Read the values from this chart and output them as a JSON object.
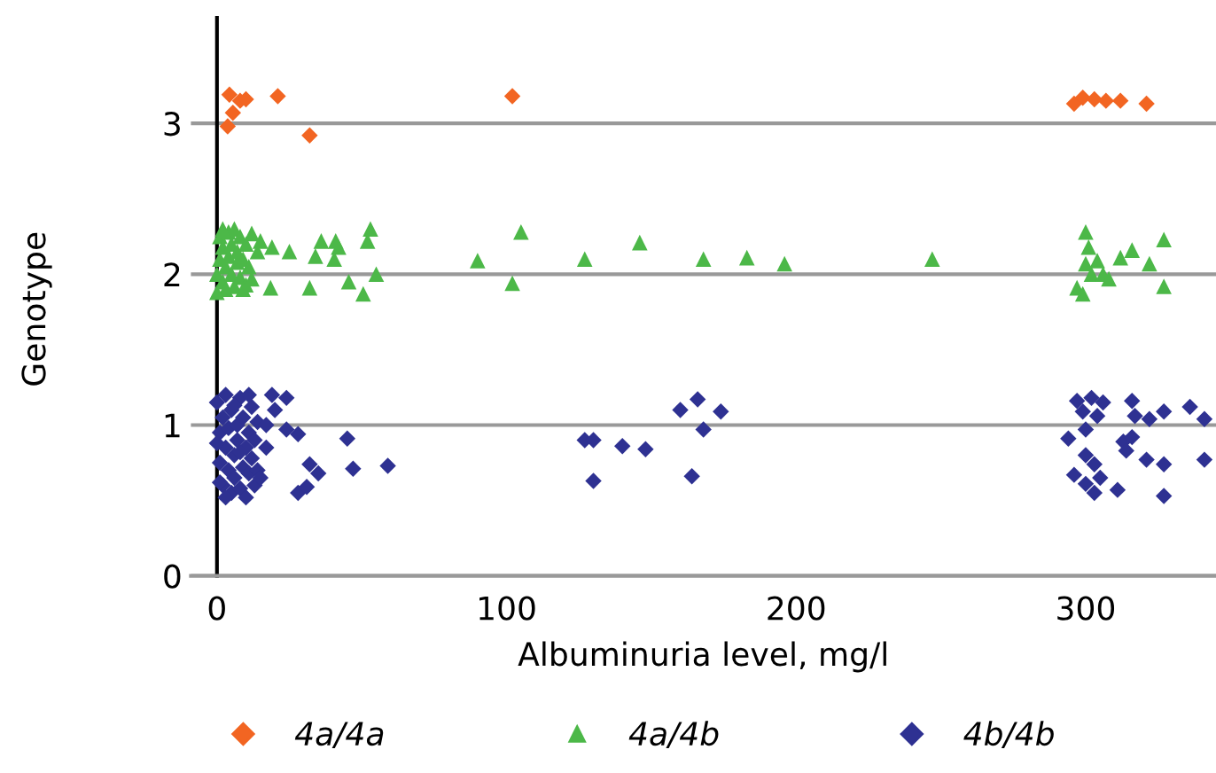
{
  "chart_data": {
    "type": "scatter",
    "xlabel": "Albuminuria level, mg/l",
    "ylabel": "Genotype",
    "xlim": [
      -9,
      345
    ],
    "ylim": [
      0,
      3.7
    ],
    "xticks": [
      0,
      100,
      200,
      300
    ],
    "yticks": [
      0,
      1,
      2,
      3
    ],
    "grid": "y",
    "legend": "bottom",
    "series": [
      {
        "name": "4a/4a",
        "color": "#f26522",
        "marker": "diamond",
        "x": [
          4.3,
          8,
          5.5,
          3.7,
          21,
          32,
          10,
          102,
          296,
          299,
          303,
          307,
          312,
          321
        ],
        "values": [
          3.19,
          3.15,
          3.07,
          2.98,
          3.18,
          2.92,
          3.16,
          3.18,
          3.13,
          3.17,
          3.16,
          3.15,
          3.15,
          3.13
        ]
      },
      {
        "name": "4a/4b",
        "color": "#4cb848",
        "marker": "triangle",
        "x": [
          0,
          1,
          1,
          2,
          2,
          3,
          3,
          4,
          4,
          5,
          5,
          6,
          6,
          7,
          7,
          8,
          8,
          9,
          10,
          10,
          11,
          12,
          12,
          14,
          15,
          2,
          0,
          9,
          19,
          25,
          18.5,
          32,
          36,
          34,
          41,
          42,
          40.5,
          45.5,
          50.5,
          53,
          52,
          55,
          90,
          105,
          102,
          127,
          146,
          168,
          183,
          196,
          247,
          300,
          301,
          300,
          302,
          297,
          299,
          306,
          312,
          316,
          327,
          322,
          327,
          308,
          304
        ],
        "values": [
          2.0,
          2.1,
          2.25,
          1.95,
          2.18,
          2.05,
          1.9,
          2.28,
          2.12,
          2.0,
          2.2,
          1.92,
          2.3,
          2.08,
          2.15,
          1.98,
          2.25,
          2.1,
          1.93,
          2.2,
          2.05,
          2.27,
          1.97,
          2.15,
          2.22,
          2.3,
          1.88,
          1.9,
          2.18,
          2.15,
          1.91,
          1.91,
          2.22,
          2.12,
          2.22,
          2.18,
          2.1,
          1.95,
          1.87,
          2.3,
          2.22,
          2.0,
          2.09,
          2.28,
          1.94,
          2.1,
          2.21,
          2.1,
          2.11,
          2.07,
          2.1,
          2.28,
          2.18,
          2.07,
          2.0,
          1.91,
          1.87,
          2.0,
          2.11,
          2.16,
          2.23,
          2.07,
          1.92,
          1.97,
          2.09
        ]
      },
      {
        "name": "4b/4b",
        "color": "#2e3192",
        "marker": "diamond",
        "x": [
          0,
          1,
          1,
          2,
          2,
          3,
          3,
          4,
          4,
          5,
          5,
          6,
          6,
          7,
          7,
          8,
          8,
          9,
          9,
          10,
          10,
          11,
          11,
          12,
          12,
          13,
          13,
          14,
          14,
          0,
          1,
          3,
          6,
          8,
          11,
          19,
          24,
          17,
          20,
          24,
          28,
          17,
          15,
          45,
          32,
          35,
          47,
          59,
          28,
          31,
          127,
          130,
          140,
          148,
          130,
          160,
          166,
          174,
          168,
          164,
          297,
          302,
          306,
          299,
          304,
          316,
          317,
          322,
          327,
          336,
          341,
          294,
          300,
          313,
          316,
          321,
          327,
          341,
          300,
          303,
          296,
          300,
          305,
          303,
          311,
          327,
          314
        ],
        "values": [
          1.15,
          0.95,
          0.75,
          1.05,
          0.6,
          0.85,
          1.2,
          0.7,
          0.98,
          0.55,
          1.1,
          0.8,
          0.65,
          1.0,
          0.9,
          1.18,
          0.58,
          0.72,
          1.05,
          0.85,
          0.52,
          0.95,
          0.68,
          1.12,
          0.78,
          0.6,
          0.9,
          1.02,
          0.7,
          0.88,
          0.62,
          0.52,
          1.13,
          0.82,
          1.2,
          1.2,
          1.18,
          1.0,
          1.1,
          0.97,
          0.94,
          0.85,
          0.65,
          0.91,
          0.74,
          0.68,
          0.71,
          0.73,
          0.55,
          0.59,
          0.9,
          0.9,
          0.86,
          0.84,
          0.63,
          1.1,
          1.17,
          1.09,
          0.97,
          0.66,
          1.16,
          1.18,
          1.15,
          1.09,
          1.06,
          1.16,
          1.06,
          1.04,
          1.09,
          1.12,
          1.04,
          0.91,
          0.97,
          0.89,
          0.92,
          0.77,
          0.74,
          0.77,
          0.8,
          0.74,
          0.67,
          0.61,
          0.65,
          0.55,
          0.57,
          0.53,
          0.83
        ]
      }
    ]
  }
}
